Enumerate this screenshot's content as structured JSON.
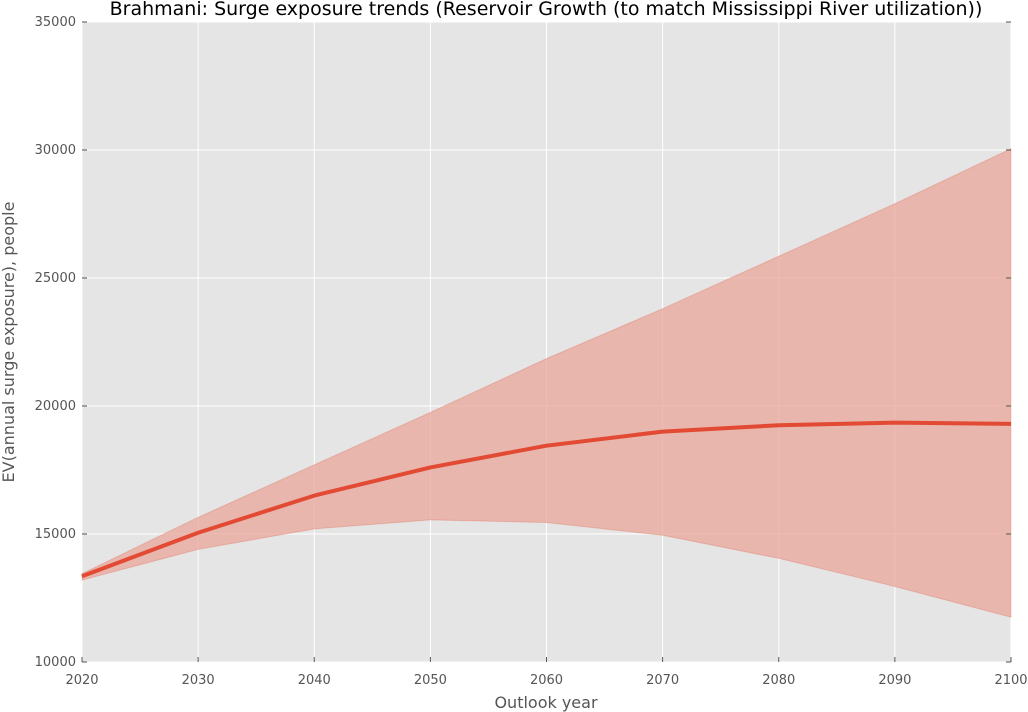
{
  "chart_data": {
    "type": "line",
    "title": "Brahmani: Surge exposure trends (Reservoir Growth (to match Mississippi River utilization))",
    "xlabel": "Outlook year",
    "ylabel": "EV(annual surge exposure), people",
    "xlim": [
      2020,
      2100
    ],
    "ylim": [
      10000,
      35000
    ],
    "x_ticks": [
      "2020",
      "2030",
      "2040",
      "2050",
      "2060",
      "2070",
      "2080",
      "2090",
      "2100"
    ],
    "y_ticks": [
      "10000",
      "15000",
      "20000",
      "25000",
      "30000",
      "35000"
    ],
    "grid": true,
    "legend": "none",
    "x": [
      2020,
      2030,
      2040,
      2050,
      2060,
      2070,
      2080,
      2090,
      2100
    ],
    "series": [
      {
        "values": [
          13350,
          15050,
          16500,
          17600,
          18450,
          19000,
          19250,
          19350,
          19300
        ],
        "lower": [
          13200,
          14400,
          15200,
          15550,
          15450,
          14950,
          14050,
          12950,
          11750
        ],
        "upper": [
          13450,
          15650,
          17700,
          19750,
          21850,
          23800,
          25850,
          27900,
          30050
        ],
        "color": "#e24a33",
        "band_color": "#e8a69a"
      }
    ],
    "plot_background": "#e5e5e5",
    "grid_color": "#ffffff"
  }
}
